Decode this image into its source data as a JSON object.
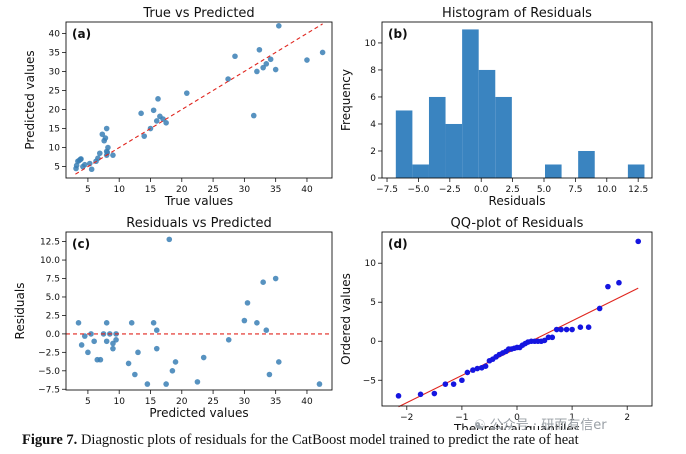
{
  "caption": {
    "label": "Figure 7.",
    "text": "Diagnostic plots of residuals for the CatBoost model trained to predict the rate of heat"
  },
  "watermark": "公众号 · 研而有信er",
  "colors": {
    "point": "#3a7fb5",
    "bar": "#3a84c0",
    "ref_line": "#e0261f",
    "qq_point": "#1515e0",
    "qq_line": "#e0261f"
  },
  "chart_data": [
    {
      "id": "a",
      "type": "scatter",
      "title": "True vs Predicted",
      "panel_label": "(a)",
      "xlabel": "True values",
      "ylabel": "Predicted values",
      "xlim": [
        1.5,
        44
      ],
      "ylim": [
        2.0,
        43
      ],
      "xticks": [
        5,
        10,
        15,
        20,
        25,
        30,
        35,
        40
      ],
      "yticks": [
        5,
        10,
        15,
        20,
        25,
        30,
        35,
        40
      ],
      "reference_line": {
        "style": "dashed",
        "from": [
          3,
          3
        ],
        "to": [
          42.5,
          42.5
        ]
      },
      "points": [
        [
          3.1,
          4.5
        ],
        [
          3.2,
          5.3
        ],
        [
          3.4,
          6.4
        ],
        [
          3.6,
          6.6
        ],
        [
          3.8,
          6.9
        ],
        [
          3.9,
          7.0
        ],
        [
          4.2,
          5.0
        ],
        [
          4.5,
          5.5
        ],
        [
          5.3,
          5.8
        ],
        [
          5.6,
          4.3
        ],
        [
          6.3,
          6.4
        ],
        [
          6.6,
          7.2
        ],
        [
          6.9,
          8.5
        ],
        [
          7.3,
          13.5
        ],
        [
          7.6,
          11.8
        ],
        [
          7.8,
          12.5
        ],
        [
          8.0,
          15.0
        ],
        [
          8.0,
          9.0
        ],
        [
          8.1,
          8.7
        ],
        [
          8.2,
          10.0
        ],
        [
          8.0,
          8.0
        ],
        [
          9.0,
          8.0
        ],
        [
          13.5,
          19.0
        ],
        [
          14.0,
          13.0
        ],
        [
          15.0,
          15.0
        ],
        [
          15.5,
          19.8
        ],
        [
          16.0,
          17.0
        ],
        [
          16.2,
          22.8
        ],
        [
          16.5,
          18.2
        ],
        [
          17.0,
          17.5
        ],
        [
          17.5,
          16.5
        ],
        [
          20.8,
          24.3
        ],
        [
          27.4,
          28.0
        ],
        [
          28.5,
          34.0
        ],
        [
          31.5,
          18.4
        ],
        [
          32.0,
          30.0
        ],
        [
          32.4,
          35.7
        ],
        [
          33.0,
          31.0
        ],
        [
          33.5,
          32.0
        ],
        [
          34.2,
          33.2
        ],
        [
          35.0,
          30.5
        ],
        [
          35.5,
          42.0
        ],
        [
          40.0,
          33.0
        ],
        [
          42.5,
          35.0
        ]
      ]
    },
    {
      "id": "b",
      "type": "bar",
      "title": "Histogram of Residuals",
      "panel_label": "(b)",
      "xlabel": "Residuals",
      "ylabel": "Frequency",
      "xlim": [
        -7.9,
        13.6
      ],
      "ylim": [
        0,
        11.55
      ],
      "xticks": [
        -7.5,
        -5.0,
        -2.5,
        0.0,
        2.5,
        5.0,
        7.5,
        10.0,
        12.5
      ],
      "xtick_labels": [
        "−7.5",
        "−5.0",
        "−2.5",
        "0.0",
        "2.5",
        "5.0",
        "7.5",
        "10.0",
        "12.5"
      ],
      "yticks": [
        0,
        2,
        4,
        6,
        8,
        10
      ],
      "bin_start": -6.8,
      "bin_width": 1.32,
      "values": [
        5,
        1,
        6,
        4,
        11,
        8,
        6,
        0,
        0,
        1,
        0,
        2,
        0,
        0,
        1
      ]
    },
    {
      "id": "c",
      "type": "scatter",
      "title": "Residuals vs Predicted",
      "panel_label": "(c)",
      "xlabel": "Predicted values",
      "ylabel": "Residuals",
      "xlim": [
        1.5,
        44
      ],
      "ylim": [
        -7.6,
        13.8
      ],
      "xticks": [
        5,
        10,
        15,
        20,
        25,
        30,
        35,
        40
      ],
      "yticks": [
        -7.5,
        -5.0,
        -2.5,
        0.0,
        2.5,
        5.0,
        7.5,
        10.0,
        12.5
      ],
      "ytick_labels": [
        "−7.5",
        "−5.0",
        "−2.5",
        "0.0",
        "2.5",
        "5.0",
        "7.5",
        "10.0",
        "12.5"
      ],
      "reference_line": {
        "style": "dashed",
        "y": 0
      },
      "points": [
        [
          3.5,
          1.5
        ],
        [
          4.0,
          -1.5
        ],
        [
          4.5,
          -0.3
        ],
        [
          5.0,
          -2.5
        ],
        [
          5.5,
          0.0
        ],
        [
          6.0,
          -1.0
        ],
        [
          6.5,
          -3.5
        ],
        [
          7.0,
          -3.5
        ],
        [
          7.5,
          0.0
        ],
        [
          8.0,
          1.5
        ],
        [
          8.0,
          -1.0
        ],
        [
          8.5,
          0.0
        ],
        [
          9.0,
          -2.0
        ],
        [
          9.0,
          -1.3
        ],
        [
          9.5,
          -0.8
        ],
        [
          9.5,
          0.0
        ],
        [
          11.5,
          -4.0
        ],
        [
          12.0,
          1.5
        ],
        [
          12.5,
          -5.5
        ],
        [
          13.0,
          -2.5
        ],
        [
          14.5,
          -6.8
        ],
        [
          15.5,
          1.5
        ],
        [
          16.0,
          0.5
        ],
        [
          16.0,
          -2.0
        ],
        [
          17.5,
          -6.8
        ],
        [
          18.0,
          12.8
        ],
        [
          18.5,
          -5.0
        ],
        [
          19.0,
          -3.8
        ],
        [
          22.5,
          -6.5
        ],
        [
          23.5,
          -3.2
        ],
        [
          27.5,
          -0.8
        ],
        [
          30.0,
          1.8
        ],
        [
          30.5,
          4.2
        ],
        [
          32.0,
          1.5
        ],
        [
          33.0,
          7.0
        ],
        [
          33.5,
          0.5
        ],
        [
          34.0,
          -5.5
        ],
        [
          35.0,
          7.5
        ],
        [
          35.5,
          -3.8
        ],
        [
          42.0,
          -6.8
        ]
      ]
    },
    {
      "id": "d",
      "type": "scatter",
      "title": "QQ-plot of Residuals",
      "panel_label": "(d)",
      "xlabel": "Theoretical quantiles",
      "ylabel": "Ordered values",
      "xlim": [
        -2.45,
        2.45
      ],
      "ylim": [
        -8.3,
        14.0
      ],
      "xticks": [
        -2,
        -1,
        0,
        1,
        2
      ],
      "xtick_labels": [
        "−2",
        "−1",
        "0",
        "1",
        "2"
      ],
      "yticks": [
        -5,
        0,
        5,
        10
      ],
      "ytick_labels": [
        "−5",
        "0",
        "5",
        "10"
      ],
      "fit_line": {
        "from": [
          -2.15,
          -8.4
        ],
        "to": [
          2.2,
          6.8
        ]
      },
      "points": [
        [
          -2.15,
          -7.0
        ],
        [
          -1.75,
          -6.8
        ],
        [
          -1.5,
          -6.7
        ],
        [
          -1.3,
          -5.5
        ],
        [
          -1.15,
          -5.5
        ],
        [
          -1.0,
          -5.0
        ],
        [
          -0.9,
          -4.0
        ],
        [
          -0.8,
          -3.7
        ],
        [
          -0.72,
          -3.5
        ],
        [
          -0.64,
          -3.4
        ],
        [
          -0.57,
          -3.2
        ],
        [
          -0.5,
          -2.5
        ],
        [
          -0.44,
          -2.3
        ],
        [
          -0.38,
          -2.0
        ],
        [
          -0.32,
          -1.7
        ],
        [
          -0.26,
          -1.5
        ],
        [
          -0.2,
          -1.3
        ],
        [
          -0.15,
          -1.0
        ],
        [
          -0.1,
          -1.0
        ],
        [
          -0.05,
          -0.9
        ],
        [
          0.0,
          -0.8
        ],
        [
          0.05,
          -0.8
        ],
        [
          0.1,
          -0.5
        ],
        [
          0.15,
          -0.3
        ],
        [
          0.2,
          -0.1
        ],
        [
          0.26,
          0.0
        ],
        [
          0.32,
          0.0
        ],
        [
          0.38,
          0.0
        ],
        [
          0.44,
          0.0
        ],
        [
          0.5,
          0.1
        ],
        [
          0.57,
          0.5
        ],
        [
          0.64,
          0.5
        ],
        [
          0.72,
          1.5
        ],
        [
          0.8,
          1.5
        ],
        [
          0.9,
          1.5
        ],
        [
          1.0,
          1.5
        ],
        [
          1.15,
          1.8
        ],
        [
          1.3,
          1.8
        ],
        [
          1.5,
          4.2
        ],
        [
          1.65,
          7.0
        ],
        [
          1.85,
          7.5
        ],
        [
          2.2,
          12.8
        ]
      ]
    }
  ]
}
